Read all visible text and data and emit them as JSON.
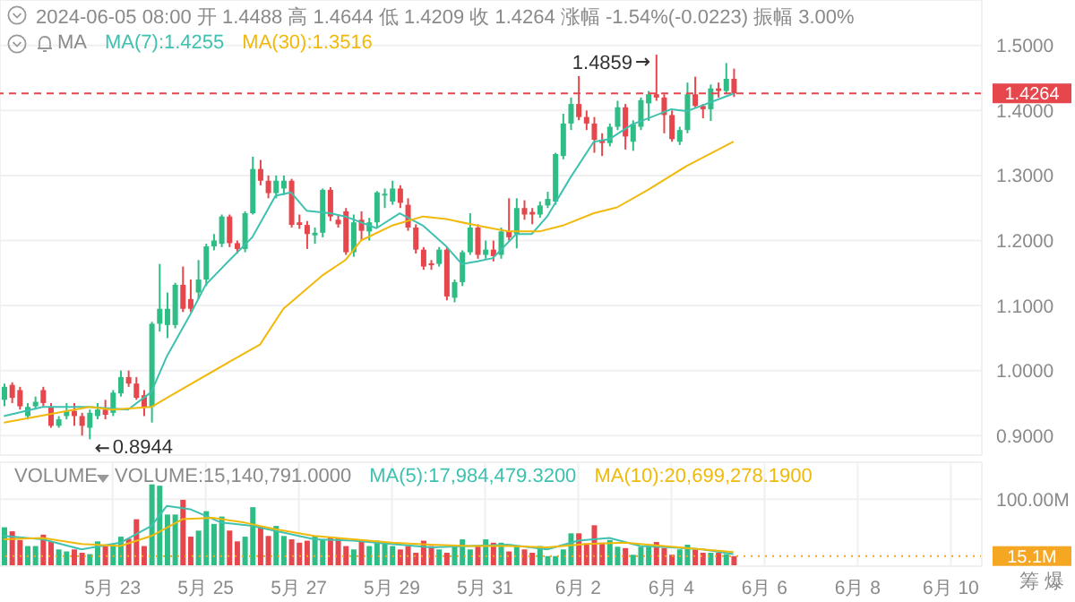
{
  "chart_data": [
    {
      "type": "candlestick",
      "annotations": [
        "2024-06-05 08:00 开 1.4488 高 1.4644 低 1.4209 收 1.4264 涨幅 -1.54%(-0.0223) 振幅 3.00%",
        "MA",
        {
          "text": "1.4859",
          "x": "2024-06-03T16:00",
          "y": 1.4859
        },
        {
          "text": "0.8944",
          "x": "2024-05-22T12:00",
          "y": 0.8944
        }
      ],
      "grid": true,
      "tick_labels": "y",
      "xlim": [
        "2024-05-20T14:00",
        "2024-06-10T16:00"
      ],
      "xticks": [
        {
          "value": "2024-05-23",
          "label": null
        },
        {
          "value": "2024-05-25",
          "label": null
        },
        {
          "value": "2024-05-27",
          "label": null
        },
        {
          "value": "2024-05-29",
          "label": null
        },
        {
          "value": "2024-05-31",
          "label": null
        },
        {
          "value": "2024-06-02",
          "label": null
        },
        {
          "value": "2024-06-04",
          "label": null
        },
        {
          "value": "2024-06-06",
          "label": null
        },
        {
          "value": "2024-06-08",
          "label": null
        },
        {
          "value": "2024-06-10",
          "label": null
        }
      ],
      "ylim": [
        0.87,
        1.57
      ],
      "yticks": [
        {
          "value": 0.9,
          "label": "0.9000"
        },
        {
          "value": 1.0,
          "label": "1.0000"
        },
        {
          "value": 1.1,
          "label": "1.1000"
        },
        {
          "value": 1.2,
          "label": "1.2000"
        },
        {
          "value": 1.3,
          "label": "1.3000"
        },
        {
          "value": 1.4,
          "label": "1.4000"
        },
        {
          "value": 1.5,
          "label": "1.5000"
        }
      ],
      "ref_lines": [
        {
          "axis": "y",
          "value": 1.4264,
          "label": "1.4264",
          "color": "#e5474c",
          "line_style": "dashed"
        }
      ],
      "x": [
        "2024-05-20T16:00",
        "2024-05-20T20:00",
        "2024-05-21T00:00",
        "2024-05-21T04:00",
        "2024-05-21T08:00",
        "2024-05-21T12:00",
        "2024-05-21T16:00",
        "2024-05-21T20:00",
        "2024-05-22T00:00",
        "2024-05-22T04:00",
        "2024-05-22T08:00",
        "2024-05-22T12:00",
        "2024-05-22T16:00",
        "2024-05-22T20:00",
        "2024-05-23T00:00",
        "2024-05-23T04:00",
        "2024-05-23T08:00",
        "2024-05-23T12:00",
        "2024-05-23T16:00",
        "2024-05-23T20:00",
        "2024-05-24T00:00",
        "2024-05-24T04:00",
        "2024-05-24T08:00",
        "2024-05-24T12:00",
        "2024-05-24T16:00",
        "2024-05-24T20:00",
        "2024-05-25T00:00",
        "2024-05-25T04:00",
        "2024-05-25T08:00",
        "2024-05-25T12:00",
        "2024-05-25T16:00",
        "2024-05-25T20:00",
        "2024-05-26T00:00",
        "2024-05-26T04:00",
        "2024-05-26T08:00",
        "2024-05-26T12:00",
        "2024-05-26T16:00",
        "2024-05-26T20:00",
        "2024-05-27T00:00",
        "2024-05-27T04:00",
        "2024-05-27T08:00",
        "2024-05-27T12:00",
        "2024-05-27T16:00",
        "2024-05-27T20:00",
        "2024-05-28T00:00",
        "2024-05-28T04:00",
        "2024-05-28T08:00",
        "2024-05-28T12:00",
        "2024-05-28T16:00",
        "2024-05-28T20:00",
        "2024-05-29T00:00",
        "2024-05-29T04:00",
        "2024-05-29T08:00",
        "2024-05-29T12:00",
        "2024-05-29T16:00",
        "2024-05-29T20:00",
        "2024-05-30T00:00",
        "2024-05-30T04:00",
        "2024-05-30T08:00",
        "2024-05-30T12:00",
        "2024-05-30T16:00",
        "2024-05-30T20:00",
        "2024-05-31T00:00",
        "2024-05-31T04:00",
        "2024-05-31T08:00",
        "2024-05-31T12:00",
        "2024-05-31T16:00",
        "2024-05-31T20:00",
        "2024-06-01T00:00",
        "2024-06-01T04:00",
        "2024-06-01T08:00",
        "2024-06-01T12:00",
        "2024-06-01T16:00",
        "2024-06-01T20:00",
        "2024-06-02T00:00",
        "2024-06-02T04:00",
        "2024-06-02T08:00",
        "2024-06-02T12:00",
        "2024-06-02T16:00",
        "2024-06-02T20:00",
        "2024-06-03T00:00",
        "2024-06-03T04:00",
        "2024-06-03T08:00",
        "2024-06-03T12:00",
        "2024-06-03T16:00",
        "2024-06-03T20:00",
        "2024-06-04T00:00",
        "2024-06-04T04:00",
        "2024-06-04T08:00",
        "2024-06-04T12:00",
        "2024-06-04T16:00",
        "2024-06-04T20:00",
        "2024-06-05T00:00",
        "2024-06-05T04:00",
        "2024-06-05T08:00"
      ],
      "ohlc": [
        [
          0.955,
          0.98,
          0.945,
          0.975
        ],
        [
          0.978,
          0.982,
          0.95,
          0.958
        ],
        [
          0.97,
          0.975,
          0.94,
          0.945
        ],
        [
          0.93,
          0.95,
          0.925,
          0.944
        ],
        [
          0.945,
          0.96,
          0.94,
          0.952
        ],
        [
          0.97,
          0.975,
          0.945,
          0.95
        ],
        [
          0.944,
          0.95,
          0.912,
          0.915
        ],
        [
          0.915,
          0.93,
          0.912,
          0.925
        ],
        [
          0.93,
          0.95,
          0.925,
          0.938
        ],
        [
          0.938,
          0.95,
          0.915,
          0.93
        ],
        [
          0.93,
          0.935,
          0.9,
          0.915
        ],
        [
          0.912,
          0.94,
          0.8944,
          0.935
        ],
        [
          0.93,
          0.95,
          0.925,
          0.94
        ],
        [
          0.94,
          0.955,
          0.925,
          0.932
        ],
        [
          0.935,
          0.97,
          0.93,
          0.966
        ],
        [
          0.965,
          1.0,
          0.96,
          0.99
        ],
        [
          0.99,
          1.0,
          0.975,
          0.98
        ],
        [
          0.98,
          0.99,
          0.955,
          0.958
        ],
        [
          0.962,
          0.97,
          0.93,
          0.944
        ],
        [
          0.944,
          1.075,
          0.92,
          1.072
        ],
        [
          1.072,
          1.164,
          1.06,
          1.095
        ],
        [
          1.07,
          1.12,
          1.05,
          1.095
        ],
        [
          1.07,
          1.135,
          1.065,
          1.132
        ],
        [
          1.132,
          1.16,
          1.09,
          1.095
        ],
        [
          1.11,
          1.14,
          1.09,
          1.095
        ],
        [
          1.12,
          1.17,
          1.11,
          1.14
        ],
        [
          1.14,
          1.195,
          1.13,
          1.191
        ],
        [
          1.191,
          1.21,
          1.185,
          1.2
        ],
        [
          1.195,
          1.24,
          1.19,
          1.237
        ],
        [
          1.237,
          1.24,
          1.19,
          1.196
        ],
        [
          1.196,
          1.2,
          1.18,
          1.187
        ],
        [
          1.187,
          1.245,
          1.182,
          1.242
        ],
        [
          1.242,
          1.329,
          1.24,
          1.31
        ],
        [
          1.31,
          1.324,
          1.285,
          1.292
        ],
        [
          1.292,
          1.3,
          1.265,
          1.273
        ],
        [
          1.273,
          1.3,
          1.265,
          1.292
        ],
        [
          1.28,
          1.3,
          1.27,
          1.292
        ],
        [
          1.292,
          1.295,
          1.22,
          1.224
        ],
        [
          1.228,
          1.24,
          1.218,
          1.224
        ],
        [
          1.224,
          1.23,
          1.187,
          1.21
        ],
        [
          1.208,
          1.22,
          1.195,
          1.212
        ],
        [
          1.212,
          1.28,
          1.205,
          1.278
        ],
        [
          1.278,
          1.282,
          1.23,
          1.237
        ],
        [
          1.232,
          1.24,
          1.22,
          1.225
        ],
        [
          1.245,
          1.25,
          1.178,
          1.182
        ],
        [
          1.182,
          1.24,
          1.175,
          1.228
        ],
        [
          1.232,
          1.245,
          1.2,
          1.215
        ],
        [
          1.214,
          1.235,
          1.2,
          1.228
        ],
        [
          1.228,
          1.276,
          1.22,
          1.274
        ],
        [
          1.27,
          1.28,
          1.25,
          1.272
        ],
        [
          1.26,
          1.292,
          1.255,
          1.28
        ],
        [
          1.28,
          1.285,
          1.25,
          1.258
        ],
        [
          1.255,
          1.265,
          1.215,
          1.22
        ],
        [
          1.22,
          1.225,
          1.18,
          1.186
        ],
        [
          1.186,
          1.19,
          1.155,
          1.16
        ],
        [
          1.165,
          1.17,
          1.155,
          1.162
        ],
        [
          1.164,
          1.19,
          1.16,
          1.186
        ],
        [
          1.186,
          1.19,
          1.108,
          1.114
        ],
        [
          1.112,
          1.14,
          1.105,
          1.136
        ],
        [
          1.136,
          1.185,
          1.13,
          1.182
        ],
        [
          1.182,
          1.242,
          1.178,
          1.22
        ],
        [
          1.22,
          1.225,
          1.172,
          1.178
        ],
        [
          1.178,
          1.2,
          1.172,
          1.186
        ],
        [
          1.186,
          1.2,
          1.168,
          1.176
        ],
        [
          1.178,
          1.22,
          1.172,
          1.214
        ],
        [
          1.214,
          1.265,
          1.2,
          1.205
        ],
        [
          1.21,
          1.265,
          1.188,
          1.25
        ],
        [
          1.25,
          1.262,
          1.232,
          1.24
        ],
        [
          1.244,
          1.25,
          1.225,
          1.24
        ],
        [
          1.24,
          1.26,
          1.235,
          1.254
        ],
        [
          1.254,
          1.275,
          1.25,
          1.264
        ],
        [
          1.26,
          1.335,
          1.255,
          1.333
        ],
        [
          1.33,
          1.395,
          1.325,
          1.38
        ],
        [
          1.38,
          1.42,
          1.37,
          1.41
        ],
        [
          1.41,
          1.453,
          1.385,
          1.39
        ],
        [
          1.39,
          1.4,
          1.37,
          1.38
        ],
        [
          1.38,
          1.39,
          1.335,
          1.355
        ],
        [
          1.355,
          1.365,
          1.33,
          1.35
        ],
        [
          1.35,
          1.38,
          1.345,
          1.375
        ],
        [
          1.375,
          1.415,
          1.37,
          1.405
        ],
        [
          1.405,
          1.41,
          1.34,
          1.36
        ],
        [
          1.352,
          1.385,
          1.338,
          1.379
        ],
        [
          1.375,
          1.42,
          1.37,
          1.416
        ],
        [
          1.411,
          1.43,
          1.384,
          1.425
        ],
        [
          1.425,
          1.4859,
          1.415,
          1.42
        ],
        [
          1.42,
          1.425,
          1.365,
          1.393
        ],
        [
          1.393,
          1.4,
          1.352,
          1.356
        ],
        [
          1.352,
          1.375,
          1.347,
          1.37
        ],
        [
          1.37,
          1.443,
          1.365,
          1.425
        ],
        [
          1.425,
          1.452,
          1.405,
          1.407
        ],
        [
          1.407,
          1.41,
          1.388,
          1.402
        ],
        [
          1.402,
          1.44,
          1.384,
          1.434
        ],
        [
          1.434,
          1.443,
          1.42,
          1.43
        ],
        [
          1.43,
          1.473,
          1.425,
          1.4488
        ],
        [
          1.4488,
          1.4644,
          1.4209,
          1.4264
        ]
      ],
      "colors": [
        "#2ebd85",
        "#e5474c",
        "#e5474c",
        "#2ebd85",
        "#2ebd85",
        "#e5474c",
        "#e5474c",
        "#2ebd85",
        "#2ebd85",
        "#e5474c",
        "#e5474c",
        "#2ebd85",
        "#2ebd85",
        "#e5474c",
        "#2ebd85",
        "#2ebd85",
        "#e5474c",
        "#e5474c",
        "#e5474c",
        "#2ebd85",
        "#2ebd85",
        "#2ebd85",
        "#2ebd85",
        "#e5474c",
        "#e5474c",
        "#2ebd85",
        "#2ebd85",
        "#2ebd85",
        "#2ebd85",
        "#e5474c",
        "#e5474c",
        "#2ebd85",
        "#2ebd85",
        "#e5474c",
        "#e5474c",
        "#2ebd85",
        "#2ebd85",
        "#e5474c",
        "#e5474c",
        "#e5474c",
        "#2ebd85",
        "#2ebd85",
        "#e5474c",
        "#e5474c",
        "#e5474c",
        "#2ebd85",
        "#e5474c",
        "#2ebd85",
        "#2ebd85",
        "#2ebd85",
        "#2ebd85",
        "#e5474c",
        "#e5474c",
        "#e5474c",
        "#e5474c",
        "#e5474c",
        "#2ebd85",
        "#e5474c",
        "#2ebd85",
        "#2ebd85",
        "#2ebd85",
        "#e5474c",
        "#2ebd85",
        "#e5474c",
        "#2ebd85",
        "#e5474c",
        "#2ebd85",
        "#e5474c",
        "#e5474c",
        "#2ebd85",
        "#2ebd85",
        "#2ebd85",
        "#2ebd85",
        "#2ebd85",
        "#e5474c",
        "#e5474c",
        "#e5474c",
        "#e5474c",
        "#2ebd85",
        "#2ebd85",
        "#e5474c",
        "#2ebd85",
        "#2ebd85",
        "#2ebd85",
        "#e5474c",
        "#e5474c",
        "#e5474c",
        "#2ebd85",
        "#2ebd85",
        "#e5474c",
        "#e5474c",
        "#2ebd85",
        "#e5474c",
        "#2ebd85",
        "#e5474c"
      ],
      "series": [
        {
          "type": "line",
          "name": "MA(7):1.4255",
          "color": "#3fc1b0",
          "x": [
            "2024-05-20T16:00",
            "2024-05-21T12:00",
            "2024-05-22T12:00",
            "2024-05-23T08:00",
            "2024-05-23T16:00",
            "2024-05-23T20:00",
            "2024-05-24T04:00",
            "2024-05-24T16:00",
            "2024-05-25T00:00",
            "2024-05-25T12:00",
            "2024-05-26T00:00",
            "2024-05-26T12:00",
            "2024-05-26T20:00",
            "2024-05-27T04:00",
            "2024-05-27T16:00",
            "2024-05-28T00:00",
            "2024-05-28T16:00",
            "2024-05-29T04:00",
            "2024-05-29T16:00",
            "2024-05-30T04:00",
            "2024-05-30T12:00",
            "2024-05-30T20:00",
            "2024-05-31T04:00",
            "2024-05-31T16:00",
            "2024-06-01T00:00",
            "2024-06-01T08:00",
            "2024-06-01T20:00",
            "2024-06-02T08:00",
            "2024-06-02T16:00",
            "2024-06-03T04:00",
            "2024-06-03T12:00",
            "2024-06-04T00:00",
            "2024-06-04T08:00",
            "2024-06-05T08:00"
          ],
          "values": [
            0.93,
            0.944,
            0.944,
            0.94,
            0.958,
            0.967,
            1.022,
            1.086,
            1.132,
            1.169,
            1.205,
            1.269,
            1.274,
            1.246,
            1.242,
            1.237,
            1.219,
            1.242,
            1.223,
            1.191,
            1.164,
            1.168,
            1.173,
            1.21,
            1.21,
            1.237,
            1.297,
            1.352,
            1.356,
            1.379,
            1.388,
            1.402,
            1.399,
            1.426
          ]
        },
        {
          "type": "line",
          "name": "MA(30):1.3516",
          "color": "#f0b90b",
          "x": [
            "2024-05-20T16:00",
            "2024-05-22T12:00",
            "2024-05-23T00:00",
            "2024-05-23T20:00",
            "2024-05-24T04:00",
            "2024-05-25T12:00",
            "2024-05-26T04:00",
            "2024-05-26T16:00",
            "2024-05-27T12:00",
            "2024-05-28T00:00",
            "2024-05-28T08:00",
            "2024-05-29T00:00",
            "2024-05-29T16:00",
            "2024-05-30T04:00",
            "2024-05-30T20:00",
            "2024-05-31T12:00",
            "2024-06-01T04:00",
            "2024-06-01T16:00",
            "2024-06-02T08:00",
            "2024-06-02T20:00",
            "2024-06-03T12:00",
            "2024-06-04T08:00",
            "2024-06-05T08:00"
          ],
          "values": [
            0.92,
            0.944,
            0.94,
            0.944,
            0.958,
            1.013,
            1.04,
            1.095,
            1.146,
            1.17,
            1.2,
            1.223,
            1.237,
            1.233,
            1.223,
            1.214,
            1.214,
            1.223,
            1.242,
            1.251,
            1.278,
            1.315,
            1.352
          ]
        }
      ]
    },
    {
      "type": "bar",
      "annotations": [
        "VOLUME",
        "筹 爆"
      ],
      "grid": true,
      "xlim": [
        "2024-05-20T14:00",
        "2024-06-10T16:00"
      ],
      "xticks": [
        {
          "value": "2024-05-23",
          "label": "5月 23"
        },
        {
          "value": "2024-05-25",
          "label": "5月 25"
        },
        {
          "value": "2024-05-27",
          "label": "5月 27"
        },
        {
          "value": "2024-05-29",
          "label": "5月 29"
        },
        {
          "value": "2024-05-31",
          "label": "5月 31"
        },
        {
          "value": "2024-06-02",
          "label": "6月 2"
        },
        {
          "value": "2024-06-04",
          "label": "6月 4"
        },
        {
          "value": "2024-06-06",
          "label": "6月 6"
        },
        {
          "value": "2024-06-08",
          "label": "6月 8"
        },
        {
          "value": "2024-06-10",
          "label": "6月 10"
        }
      ],
      "ylim": [
        0,
        155
      ],
      "yticks": [
        {
          "value": 100,
          "label": "100.00M"
        }
      ],
      "ref_lines": [
        {
          "axis": "y",
          "value": 15.1,
          "label": "15.1M",
          "color": "#f5a623",
          "line_style": "dotted"
        }
      ],
      "x": [
        "2024-05-20T16:00",
        "2024-05-20T20:00",
        "2024-05-21T00:00",
        "2024-05-21T04:00",
        "2024-05-21T08:00",
        "2024-05-21T12:00",
        "2024-05-21T16:00",
        "2024-05-21T20:00",
        "2024-05-22T00:00",
        "2024-05-22T04:00",
        "2024-05-22T08:00",
        "2024-05-22T12:00",
        "2024-05-22T16:00",
        "2024-05-22T20:00",
        "2024-05-23T00:00",
        "2024-05-23T04:00",
        "2024-05-23T08:00",
        "2024-05-23T12:00",
        "2024-05-23T16:00",
        "2024-05-23T20:00",
        "2024-05-24T00:00",
        "2024-05-24T04:00",
        "2024-05-24T08:00",
        "2024-05-24T12:00",
        "2024-05-24T16:00",
        "2024-05-24T20:00",
        "2024-05-25T00:00",
        "2024-05-25T04:00",
        "2024-05-25T08:00",
        "2024-05-25T12:00",
        "2024-05-25T16:00",
        "2024-05-25T20:00",
        "2024-05-26T00:00",
        "2024-05-26T04:00",
        "2024-05-26T08:00",
        "2024-05-26T12:00",
        "2024-05-26T16:00",
        "2024-05-26T20:00",
        "2024-05-27T00:00",
        "2024-05-27T04:00",
        "2024-05-27T08:00",
        "2024-05-27T12:00",
        "2024-05-27T16:00",
        "2024-05-27T20:00",
        "2024-05-28T00:00",
        "2024-05-28T04:00",
        "2024-05-28T08:00",
        "2024-05-28T12:00",
        "2024-05-28T16:00",
        "2024-05-28T20:00",
        "2024-05-29T00:00",
        "2024-05-29T04:00",
        "2024-05-29T08:00",
        "2024-05-29T12:00",
        "2024-05-29T16:00",
        "2024-05-29T20:00",
        "2024-05-30T00:00",
        "2024-05-30T04:00",
        "2024-05-30T08:00",
        "2024-05-30T12:00",
        "2024-05-30T16:00",
        "2024-05-30T20:00",
        "2024-05-31T00:00",
        "2024-05-31T04:00",
        "2024-05-31T08:00",
        "2024-05-31T12:00",
        "2024-05-31T16:00",
        "2024-05-31T20:00",
        "2024-06-01T00:00",
        "2024-06-01T04:00",
        "2024-06-01T08:00",
        "2024-06-01T12:00",
        "2024-06-01T16:00",
        "2024-06-01T20:00",
        "2024-06-02T00:00",
        "2024-06-02T04:00",
        "2024-06-02T08:00",
        "2024-06-02T12:00",
        "2024-06-02T16:00",
        "2024-06-02T20:00",
        "2024-06-03T00:00",
        "2024-06-03T04:00",
        "2024-06-03T08:00",
        "2024-06-03T12:00",
        "2024-06-03T16:00",
        "2024-06-03T20:00",
        "2024-06-04T00:00",
        "2024-06-04T04:00",
        "2024-06-04T08:00",
        "2024-06-04T12:00",
        "2024-06-04T16:00",
        "2024-06-04T20:00",
        "2024-06-05T00:00",
        "2024-06-05T04:00",
        "2024-06-05T08:00"
      ],
      "series": [
        {
          "type": "bar",
          "name": "VOLUME:15,140,791.0000",
          "values": [
            58,
            52,
            39,
            30,
            30,
            47,
            37,
            25,
            22,
            25,
            20,
            18,
            37,
            30,
            30,
            44,
            41,
            70,
            30,
            122,
            120,
            77,
            77,
            99,
            44,
            53,
            82,
            63,
            74,
            53,
            37,
            44,
            88,
            60,
            45,
            60,
            45,
            40,
            35,
            38,
            45,
            40,
            44,
            42,
            30,
            25,
            40,
            30,
            38,
            35,
            30,
            25,
            30,
            20,
            38,
            30,
            25,
            20,
            30,
            40,
            25,
            30,
            40,
            35,
            35,
            22,
            30,
            25,
            20,
            30,
            15,
            15,
            25,
            49,
            49,
            34,
            61,
            35,
            39,
            29,
            27,
            17,
            29,
            29,
            36,
            27,
            17,
            25,
            32,
            25,
            20,
            20,
            20,
            18,
            15
          ],
          "colors": [
            "#2ebd85",
            "#e5474c",
            "#e5474c",
            "#2ebd85",
            "#2ebd85",
            "#e5474c",
            "#e5474c",
            "#2ebd85",
            "#2ebd85",
            "#e5474c",
            "#e5474c",
            "#2ebd85",
            "#2ebd85",
            "#e5474c",
            "#2ebd85",
            "#2ebd85",
            "#e5474c",
            "#e5474c",
            "#e5474c",
            "#2ebd85",
            "#2ebd85",
            "#2ebd85",
            "#2ebd85",
            "#e5474c",
            "#e5474c",
            "#2ebd85",
            "#2ebd85",
            "#2ebd85",
            "#2ebd85",
            "#e5474c",
            "#e5474c",
            "#2ebd85",
            "#2ebd85",
            "#e5474c",
            "#e5474c",
            "#2ebd85",
            "#2ebd85",
            "#e5474c",
            "#e5474c",
            "#e5474c",
            "#2ebd85",
            "#2ebd85",
            "#e5474c",
            "#e5474c",
            "#e5474c",
            "#2ebd85",
            "#e5474c",
            "#2ebd85",
            "#2ebd85",
            "#2ebd85",
            "#2ebd85",
            "#e5474c",
            "#e5474c",
            "#e5474c",
            "#e5474c",
            "#e5474c",
            "#2ebd85",
            "#e5474c",
            "#2ebd85",
            "#2ebd85",
            "#2ebd85",
            "#e5474c",
            "#2ebd85",
            "#e5474c",
            "#2ebd85",
            "#e5474c",
            "#2ebd85",
            "#e5474c",
            "#e5474c",
            "#2ebd85",
            "#2ebd85",
            "#2ebd85",
            "#2ebd85",
            "#2ebd85",
            "#e5474c",
            "#e5474c",
            "#e5474c",
            "#e5474c",
            "#2ebd85",
            "#2ebd85",
            "#e5474c",
            "#2ebd85",
            "#2ebd85",
            "#2ebd85",
            "#e5474c",
            "#e5474c",
            "#e5474c",
            "#2ebd85",
            "#2ebd85",
            "#e5474c",
            "#e5474c",
            "#2ebd85",
            "#e5474c",
            "#2ebd85",
            "#e5474c"
          ]
        },
        {
          "type": "line",
          "name": "MA(5):17,984,479.3200",
          "color": "#3fc1b0",
          "x": [
            "2024-05-20T16:00",
            "2024-05-21T12:00",
            "2024-05-22T08:00",
            "2024-05-23T04:00",
            "2024-05-23T20:00",
            "2024-05-24T04:00",
            "2024-05-24T16:00",
            "2024-05-25T08:00",
            "2024-05-26T00:00",
            "2024-05-26T16:00",
            "2024-05-27T08:00",
            "2024-05-28T04:00",
            "2024-05-29T00:00",
            "2024-05-29T20:00",
            "2024-05-30T16:00",
            "2024-05-31T12:00",
            "2024-06-01T08:00",
            "2024-06-02T00:00",
            "2024-06-02T16:00",
            "2024-06-03T08:00",
            "2024-06-04T00:00",
            "2024-06-04T16:00",
            "2024-06-05T08:00"
          ],
          "values": [
            45,
            40,
            25,
            35,
            60,
            90,
            85,
            65,
            60,
            50,
            40,
            38,
            33,
            28,
            30,
            32,
            25,
            38,
            42,
            30,
            28,
            25,
            18
          ]
        },
        {
          "type": "line",
          "name": "MA(10):20,699,278.1900",
          "color": "#f0b90b",
          "x": [
            "2024-05-20T16:00",
            "2024-05-21T12:00",
            "2024-05-22T08:00",
            "2024-05-23T04:00",
            "2024-05-23T20:00",
            "2024-05-24T12:00",
            "2024-05-25T04:00",
            "2024-05-25T20:00",
            "2024-05-26T12:00",
            "2024-05-27T08:00",
            "2024-05-28T04:00",
            "2024-05-29T00:00",
            "2024-05-29T20:00",
            "2024-05-30T16:00",
            "2024-05-31T12:00",
            "2024-06-01T08:00",
            "2024-06-02T04:00",
            "2024-06-03T00:00",
            "2024-06-03T20:00",
            "2024-06-04T16:00",
            "2024-06-05T08:00"
          ],
          "values": [
            40,
            42,
            33,
            30,
            45,
            70,
            72,
            65,
            55,
            45,
            40,
            35,
            32,
            30,
            30,
            28,
            33,
            35,
            30,
            25,
            21
          ]
        }
      ]
    }
  ]
}
